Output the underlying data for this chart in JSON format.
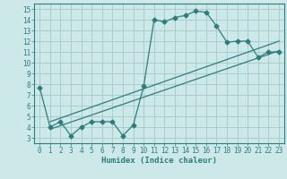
{
  "xlabel": "Humidex (Indice chaleur)",
  "bg_color": "#cce8e8",
  "grid_color": "#aacccc",
  "line_color": "#2e7d7d",
  "xlim": [
    -0.5,
    23.5
  ],
  "ylim": [
    2.5,
    15.5
  ],
  "xticks": [
    0,
    1,
    2,
    3,
    4,
    5,
    6,
    7,
    8,
    9,
    10,
    11,
    12,
    13,
    14,
    15,
    16,
    17,
    18,
    19,
    20,
    21,
    22,
    23
  ],
  "yticks": [
    3,
    4,
    5,
    6,
    7,
    8,
    9,
    10,
    11,
    12,
    13,
    14,
    15
  ],
  "line1_x": [
    0,
    1,
    2,
    3,
    4,
    5,
    6,
    7,
    8,
    9,
    10,
    11,
    12,
    13,
    14,
    15,
    16,
    17,
    18,
    19,
    20,
    21,
    22,
    23
  ],
  "line1_y": [
    7.7,
    4.0,
    4.5,
    3.2,
    4.0,
    4.5,
    4.5,
    4.5,
    3.2,
    4.2,
    7.8,
    14.0,
    13.8,
    14.2,
    14.4,
    14.8,
    14.7,
    13.4,
    11.9,
    12.0,
    12.0,
    10.5,
    11.0,
    11.0
  ],
  "line2_x": [
    1,
    23
  ],
  "line2_y": [
    3.8,
    11.1
  ],
  "line3_x": [
    1,
    23
  ],
  "line3_y": [
    4.5,
    12.0
  ],
  "marker": "D",
  "markersize": 2.5,
  "tick_fontsize": 5.5,
  "xlabel_fontsize": 6.5
}
